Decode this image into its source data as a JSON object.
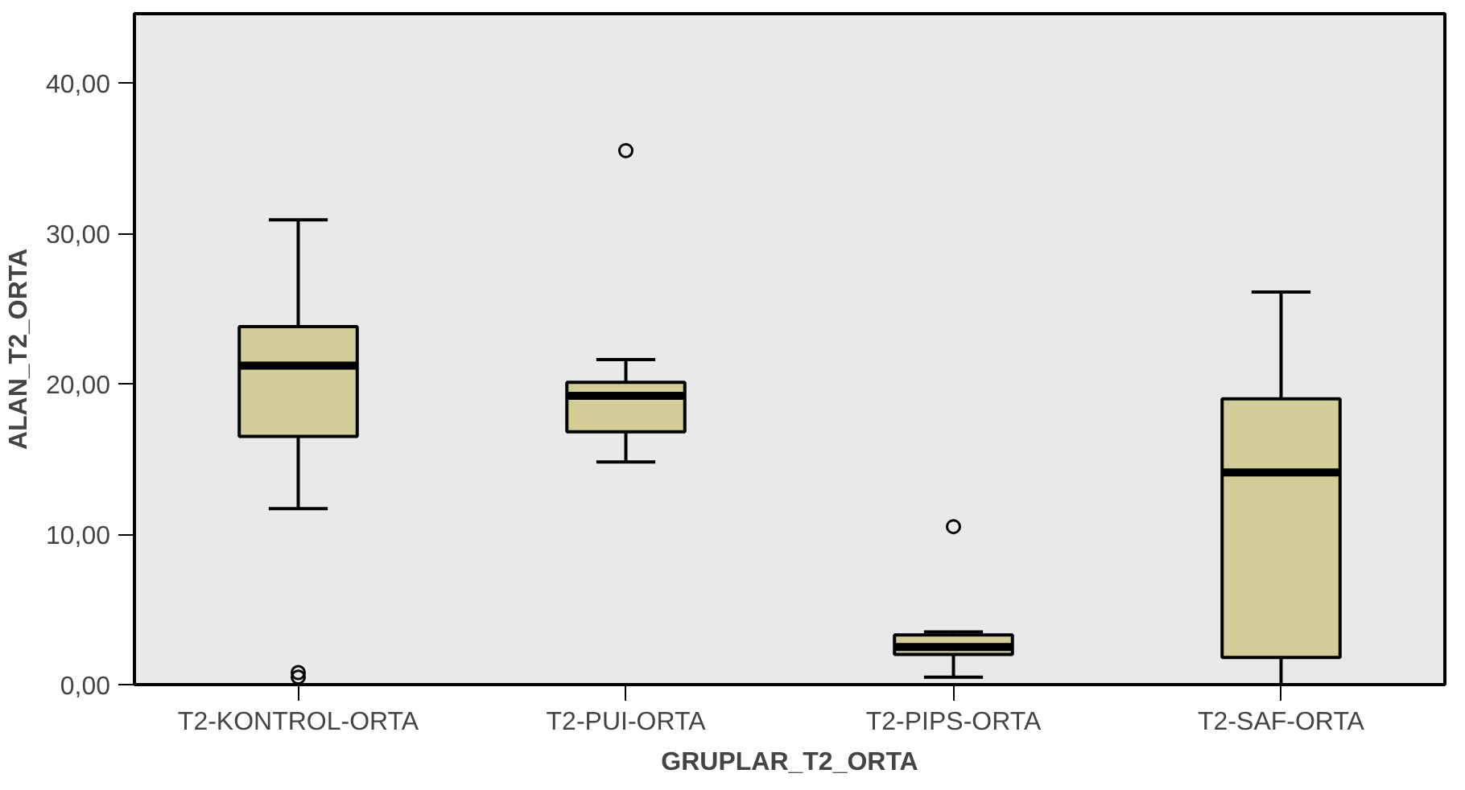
{
  "chart_data": {
    "type": "box",
    "xlabel": "GRUPLAR_T2_ORTA",
    "ylabel": "ALAN_T2_ORTA",
    "categories": [
      "T2-KONTROL-ORTA",
      "T2-PUI-ORTA",
      "T2-PIPS-ORTA",
      "T2-SAF-ORTA"
    ],
    "color": "#d3ce97",
    "boxes": [
      {
        "low": 11.7,
        "q1": 16.5,
        "median": 21.2,
        "q3": 23.8,
        "high": 30.9,
        "outliers": [
          0.5,
          0.8
        ]
      },
      {
        "low": 14.8,
        "q1": 16.8,
        "median": 19.2,
        "q3": 20.1,
        "high": 21.6,
        "outliers": [
          35.5
        ]
      },
      {
        "low": 0.5,
        "q1": 2.0,
        "median": 2.5,
        "q3": 3.3,
        "high": 3.5,
        "outliers": [
          10.5
        ]
      },
      {
        "low": 0.0,
        "q1": 1.8,
        "median": 14.1,
        "q3": 19.0,
        "high": 26.1
      }
    ],
    "ylim": [
      0,
      44.6
    ],
    "yticks": [
      {
        "value": 0,
        "label": "0,00"
      },
      {
        "value": 10,
        "label": "10,00"
      },
      {
        "value": 20,
        "label": "20,00"
      },
      {
        "value": 30,
        "label": "30,00"
      },
      {
        "value": 40,
        "label": "40,00"
      }
    ],
    "grid": false,
    "marker": "circle"
  }
}
